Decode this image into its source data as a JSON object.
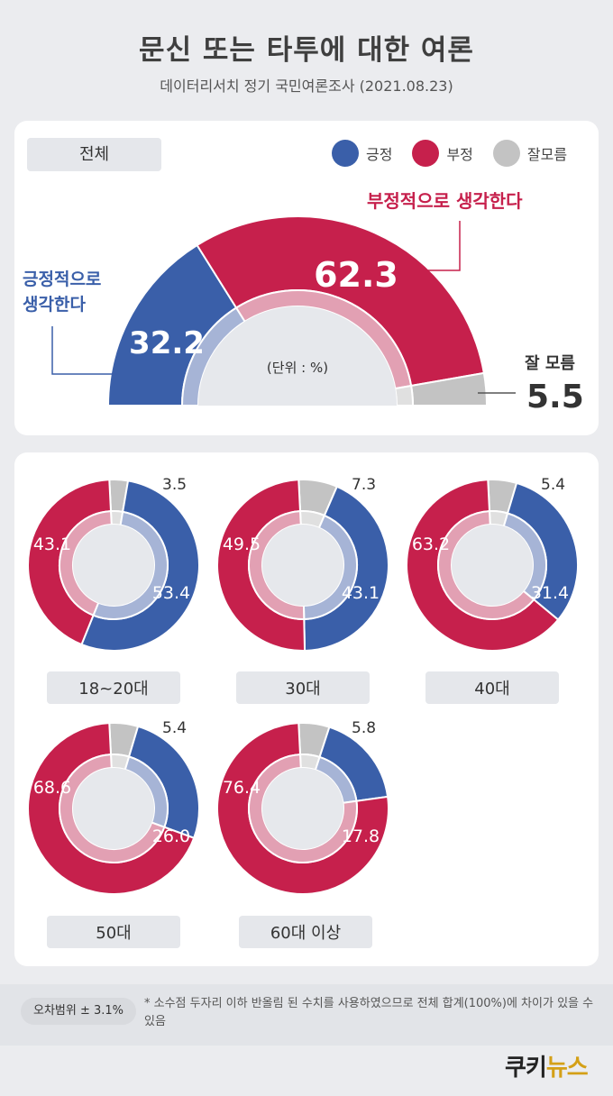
{
  "header": {
    "title": "문신 또는 타투에 대한 여론",
    "subtitle": "데이터리서치 정기 국민여론조사 (2021.08.23)"
  },
  "colors": {
    "positive": "#3a5fa9",
    "negative": "#c6204c",
    "unknown": "#c3c3c3"
  },
  "legend": [
    {
      "label": "긍정",
      "color": "#3a5fa9"
    },
    {
      "label": "부정",
      "color": "#c6204c"
    },
    {
      "label": "잘모름",
      "color": "#c3c3c3"
    }
  ],
  "overall": {
    "pill": "전체",
    "unit": "(단위 : %)",
    "positive_label_line1": "긍정적으로",
    "positive_label_line2": "생각한다",
    "negative_label": "부정적으로 생각한다",
    "unknown_label": "잘 모름"
  },
  "chart_data": [
    {
      "type": "pie",
      "categories": [
        "긍정",
        "부정",
        "잘모름"
      ],
      "values": [
        32.2,
        62.3,
        5.5
      ],
      "title": "전체"
    },
    {
      "type": "pie",
      "title": "18~20대",
      "categories": [
        "긍정",
        "부정",
        "잘모름"
      ],
      "values": [
        53.4,
        43.1,
        3.5
      ]
    },
    {
      "type": "pie",
      "title": "30대",
      "categories": [
        "긍정",
        "부정",
        "잘모름"
      ],
      "values": [
        43.1,
        49.5,
        7.3
      ]
    },
    {
      "type": "pie",
      "title": "40대",
      "categories": [
        "긍정",
        "부정",
        "잘모름"
      ],
      "values": [
        31.4,
        63.2,
        5.4
      ]
    },
    {
      "type": "pie",
      "title": "50대",
      "categories": [
        "긍정",
        "부정",
        "잘모름"
      ],
      "values": [
        26.0,
        68.6,
        5.4
      ]
    },
    {
      "type": "pie",
      "title": "60대 이상",
      "categories": [
        "긍정",
        "부정",
        "잘모름"
      ],
      "values": [
        17.8,
        76.4,
        5.8
      ]
    }
  ],
  "footer": {
    "margin_of_error": "오차범위 ± 3.1%",
    "note": "* 소수점 두자리 이하 반올림 된 수치를 사용하였으므로 전체 합계(100%)에 차이가 있을 수 있음",
    "logo_main": "쿠키",
    "logo_accent": "뉴스"
  }
}
